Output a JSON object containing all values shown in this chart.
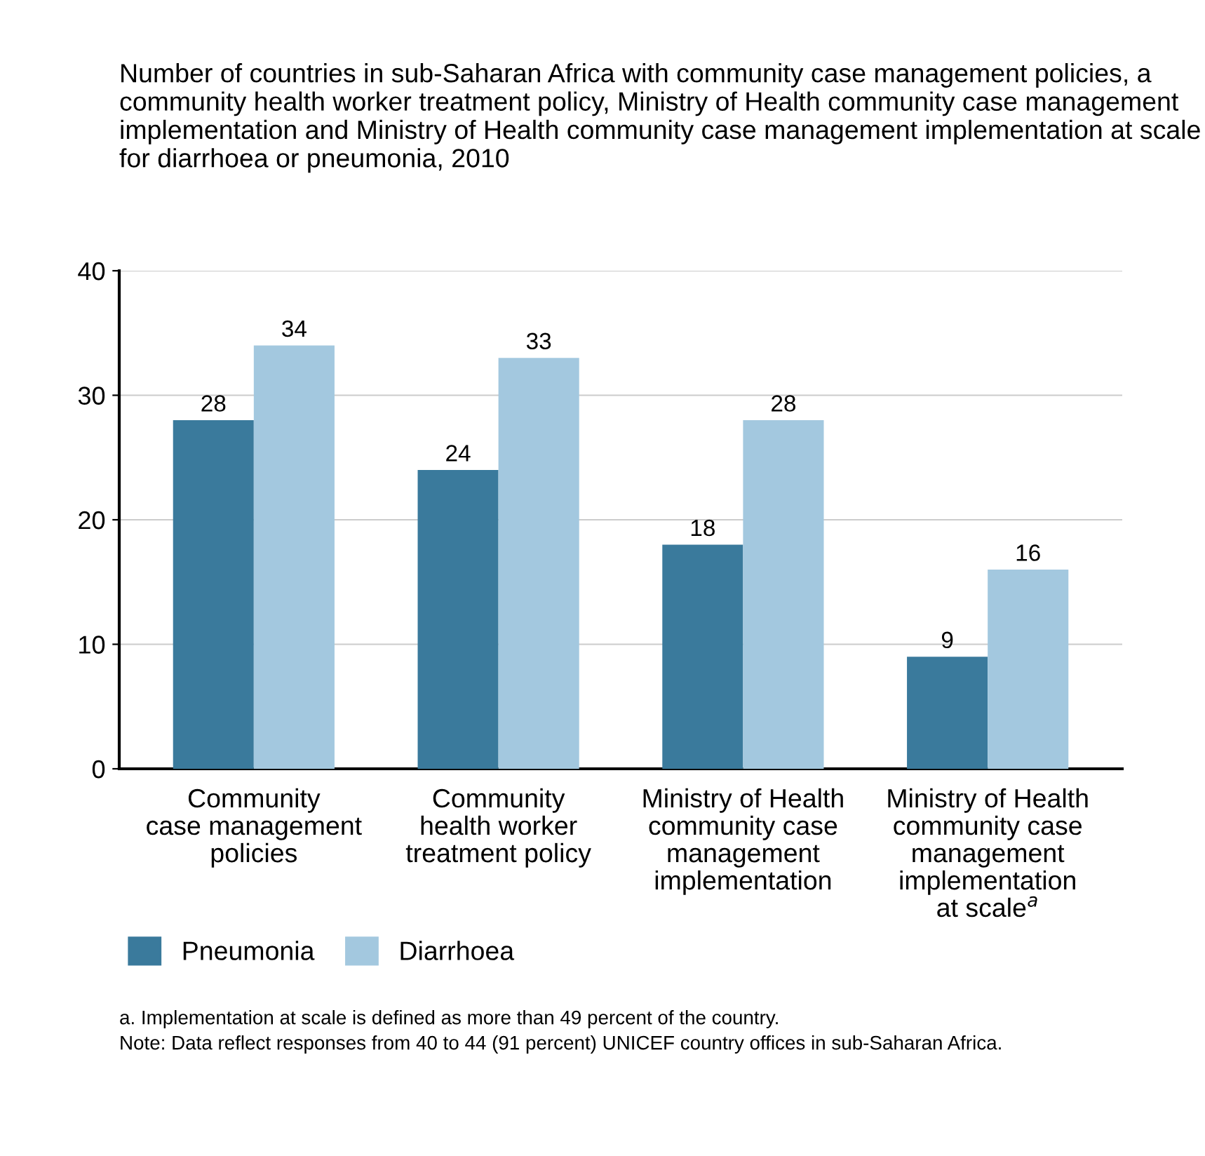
{
  "chart_data": {
    "type": "bar",
    "title": "Number of countries in sub-Saharan Africa with community case management policies, a community health worker treatment policy, Ministry of Health community case management implementation and Ministry of Health community case management implementation at scale for diarrhoea or pneumonia, 2010",
    "categories": [
      "Community\ncase management\npolicies",
      "Community\nhealth worker\ntreatment policy",
      "Ministry of Health\ncommunity case\nmanagement\nimplementation",
      "Ministry of Health\ncommunity case\nmanagement\nimplementation\nat scale$^{a}$"
    ],
    "series": [
      {
        "name": "Pneumonia",
        "color": "#3a7a9c",
        "values": [
          28,
          24,
          18,
          9
        ]
      },
      {
        "name": "Diarrhoea",
        "color": "#a3c8df",
        "values": [
          34,
          33,
          28,
          16
        ]
      }
    ],
    "ylim": [
      0,
      40
    ],
    "yticks": [
      0,
      10,
      20,
      30,
      40
    ],
    "grid": "y",
    "legend": "bottom left",
    "data_labels": true,
    "annotations": [
      "a. Implementation at scale is defined as more than 49 percent of the country.",
      "Note: Data reflect responses from 40 to 44 (91 percent) UNICEF country offices in sub-Saharan Africa."
    ]
  }
}
